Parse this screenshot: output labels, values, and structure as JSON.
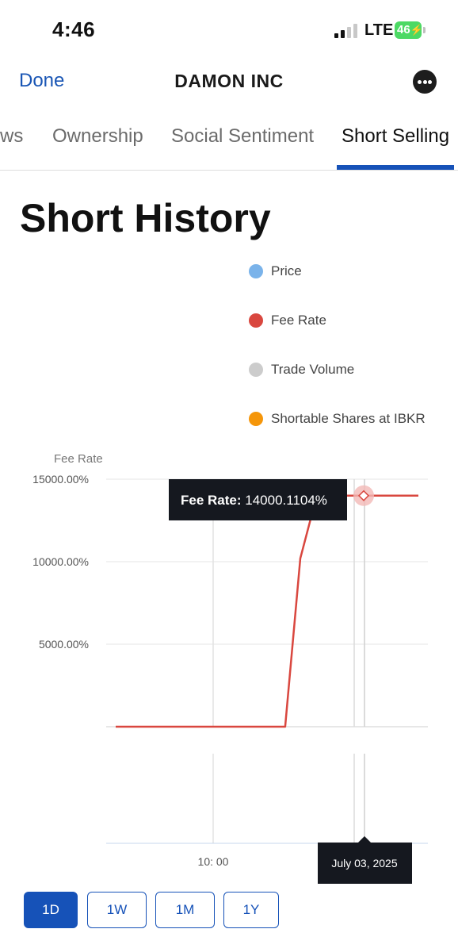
{
  "status_bar": {
    "time": "4:46",
    "network": "LTE",
    "battery": "46"
  },
  "nav": {
    "done_label": "Done",
    "title": "DAMON INC",
    "more_icon": "more-icon"
  },
  "tabs": [
    {
      "label": "ws"
    },
    {
      "label": "Ownership"
    },
    {
      "label": "Social Sentiment"
    },
    {
      "label": "Short Selling",
      "active": true
    }
  ],
  "section": {
    "heading": "Short History"
  },
  "legend": [
    {
      "label": "Price",
      "color": "#7ab3ea"
    },
    {
      "label": "Fee Rate",
      "color": "#d9473f"
    },
    {
      "label": "Trade Volume",
      "color": "#cccccc"
    },
    {
      "label": "Shortable Shares at IBKR",
      "color": "#f5960a"
    }
  ],
  "chart_data": {
    "type": "line",
    "ylabel": "Fee Rate",
    "yticks": [
      "15000.00%",
      "10000.00%",
      "5000.00%"
    ],
    "xticks": [
      "10: 00"
    ],
    "ylim": [
      0,
      15000
    ],
    "series": [
      {
        "name": "Fee Rate",
        "color": "#d9473f",
        "points": [
          {
            "t": 0.0,
            "y": 0
          },
          {
            "t": 0.56,
            "y": 0
          },
          {
            "t": 0.61,
            "y": 10200
          },
          {
            "t": 0.65,
            "y": 13000
          },
          {
            "t": 0.68,
            "y": 14000.1104
          },
          {
            "t": 0.96,
            "y": 14000.1104
          },
          {
            "t": 1.0,
            "y": 14000
          }
        ]
      }
    ],
    "tooltip": {
      "label": "Fee Rate:",
      "value": "14000.1104%"
    },
    "date_tooltip": "July 03, 2025"
  },
  "range_buttons": [
    {
      "label": "1D",
      "active": true
    },
    {
      "label": "1W"
    },
    {
      "label": "1M"
    },
    {
      "label": "1Y"
    }
  ]
}
